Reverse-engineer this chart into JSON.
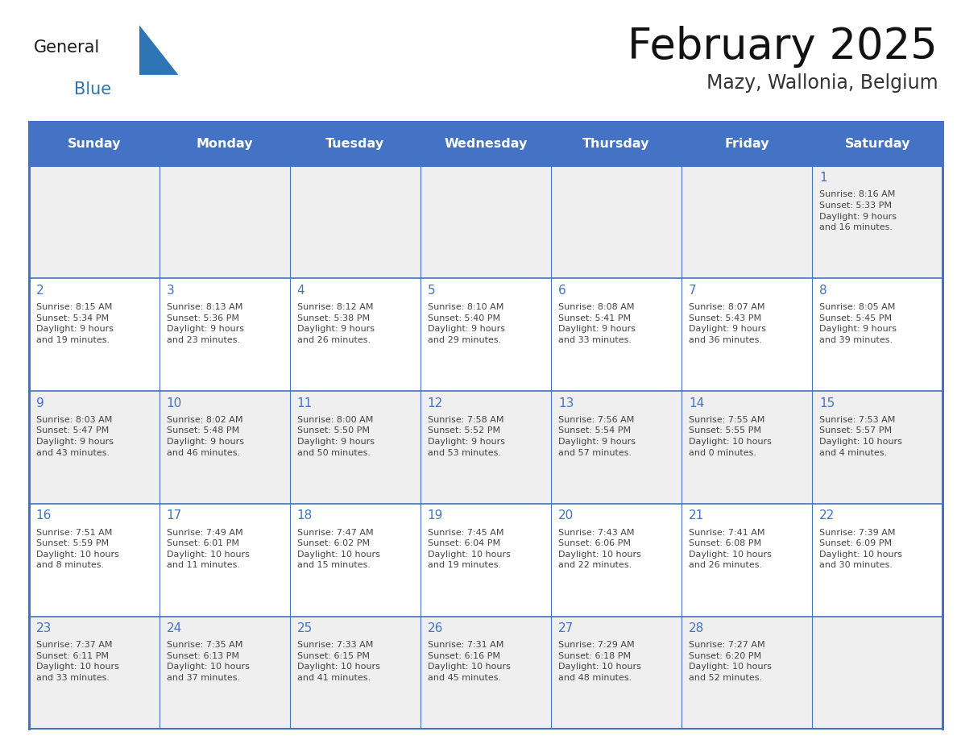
{
  "title": "February 2025",
  "subtitle": "Mazy, Wallonia, Belgium",
  "days_of_week": [
    "Sunday",
    "Monday",
    "Tuesday",
    "Wednesday",
    "Thursday",
    "Friday",
    "Saturday"
  ],
  "header_bg": "#4472C4",
  "header_text": "#FFFFFF",
  "cell_bg_gray": "#EFEFEF",
  "cell_bg_white": "#FFFFFF",
  "border_color": "#4472C4",
  "text_color": "#444444",
  "day_num_color": "#4472C4",
  "logo_general_color": "#1a1a1a",
  "logo_blue_color": "#2E75B6",
  "weeks": [
    [
      {
        "day": null,
        "info": null
      },
      {
        "day": null,
        "info": null
      },
      {
        "day": null,
        "info": null
      },
      {
        "day": null,
        "info": null
      },
      {
        "day": null,
        "info": null
      },
      {
        "day": null,
        "info": null
      },
      {
        "day": 1,
        "info": "Sunrise: 8:16 AM\nSunset: 5:33 PM\nDaylight: 9 hours\nand 16 minutes."
      }
    ],
    [
      {
        "day": 2,
        "info": "Sunrise: 8:15 AM\nSunset: 5:34 PM\nDaylight: 9 hours\nand 19 minutes."
      },
      {
        "day": 3,
        "info": "Sunrise: 8:13 AM\nSunset: 5:36 PM\nDaylight: 9 hours\nand 23 minutes."
      },
      {
        "day": 4,
        "info": "Sunrise: 8:12 AM\nSunset: 5:38 PM\nDaylight: 9 hours\nand 26 minutes."
      },
      {
        "day": 5,
        "info": "Sunrise: 8:10 AM\nSunset: 5:40 PM\nDaylight: 9 hours\nand 29 minutes."
      },
      {
        "day": 6,
        "info": "Sunrise: 8:08 AM\nSunset: 5:41 PM\nDaylight: 9 hours\nand 33 minutes."
      },
      {
        "day": 7,
        "info": "Sunrise: 8:07 AM\nSunset: 5:43 PM\nDaylight: 9 hours\nand 36 minutes."
      },
      {
        "day": 8,
        "info": "Sunrise: 8:05 AM\nSunset: 5:45 PM\nDaylight: 9 hours\nand 39 minutes."
      }
    ],
    [
      {
        "day": 9,
        "info": "Sunrise: 8:03 AM\nSunset: 5:47 PM\nDaylight: 9 hours\nand 43 minutes."
      },
      {
        "day": 10,
        "info": "Sunrise: 8:02 AM\nSunset: 5:48 PM\nDaylight: 9 hours\nand 46 minutes."
      },
      {
        "day": 11,
        "info": "Sunrise: 8:00 AM\nSunset: 5:50 PM\nDaylight: 9 hours\nand 50 minutes."
      },
      {
        "day": 12,
        "info": "Sunrise: 7:58 AM\nSunset: 5:52 PM\nDaylight: 9 hours\nand 53 minutes."
      },
      {
        "day": 13,
        "info": "Sunrise: 7:56 AM\nSunset: 5:54 PM\nDaylight: 9 hours\nand 57 minutes."
      },
      {
        "day": 14,
        "info": "Sunrise: 7:55 AM\nSunset: 5:55 PM\nDaylight: 10 hours\nand 0 minutes."
      },
      {
        "day": 15,
        "info": "Sunrise: 7:53 AM\nSunset: 5:57 PM\nDaylight: 10 hours\nand 4 minutes."
      }
    ],
    [
      {
        "day": 16,
        "info": "Sunrise: 7:51 AM\nSunset: 5:59 PM\nDaylight: 10 hours\nand 8 minutes."
      },
      {
        "day": 17,
        "info": "Sunrise: 7:49 AM\nSunset: 6:01 PM\nDaylight: 10 hours\nand 11 minutes."
      },
      {
        "day": 18,
        "info": "Sunrise: 7:47 AM\nSunset: 6:02 PM\nDaylight: 10 hours\nand 15 minutes."
      },
      {
        "day": 19,
        "info": "Sunrise: 7:45 AM\nSunset: 6:04 PM\nDaylight: 10 hours\nand 19 minutes."
      },
      {
        "day": 20,
        "info": "Sunrise: 7:43 AM\nSunset: 6:06 PM\nDaylight: 10 hours\nand 22 minutes."
      },
      {
        "day": 21,
        "info": "Sunrise: 7:41 AM\nSunset: 6:08 PM\nDaylight: 10 hours\nand 26 minutes."
      },
      {
        "day": 22,
        "info": "Sunrise: 7:39 AM\nSunset: 6:09 PM\nDaylight: 10 hours\nand 30 minutes."
      }
    ],
    [
      {
        "day": 23,
        "info": "Sunrise: 7:37 AM\nSunset: 6:11 PM\nDaylight: 10 hours\nand 33 minutes."
      },
      {
        "day": 24,
        "info": "Sunrise: 7:35 AM\nSunset: 6:13 PM\nDaylight: 10 hours\nand 37 minutes."
      },
      {
        "day": 25,
        "info": "Sunrise: 7:33 AM\nSunset: 6:15 PM\nDaylight: 10 hours\nand 41 minutes."
      },
      {
        "day": 26,
        "info": "Sunrise: 7:31 AM\nSunset: 6:16 PM\nDaylight: 10 hours\nand 45 minutes."
      },
      {
        "day": 27,
        "info": "Sunrise: 7:29 AM\nSunset: 6:18 PM\nDaylight: 10 hours\nand 48 minutes."
      },
      {
        "day": 28,
        "info": "Sunrise: 7:27 AM\nSunset: 6:20 PM\nDaylight: 10 hours\nand 52 minutes."
      },
      {
        "day": null,
        "info": null
      }
    ]
  ]
}
